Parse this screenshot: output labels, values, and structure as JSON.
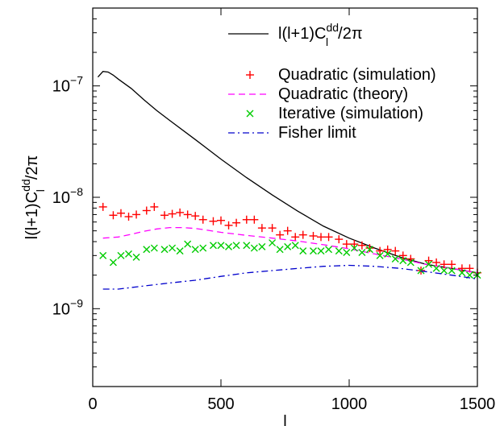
{
  "chart_data": {
    "type": "line",
    "title": "",
    "xlabel": "l",
    "ylabel": {
      "main": "l(l+1)C",
      "sup": "dd",
      "sub": "l",
      "tail": "/2π"
    },
    "x_scale": "linear",
    "y_scale": "log",
    "xlim": [
      0,
      1500
    ],
    "ylim": [
      2e-10,
      5e-07
    ],
    "x_ticks": [
      0,
      500,
      1000,
      1500
    ],
    "x_tick_labels": [
      "0",
      "500",
      "1000",
      "1500"
    ],
    "y_ticks": [
      1e-09,
      1e-08,
      1e-07
    ],
    "y_tick_labels": [
      {
        "base": "10",
        "exp": "−9"
      },
      {
        "base": "10",
        "exp": "−8"
      },
      {
        "base": "10",
        "exp": "−7"
      }
    ],
    "grid": false,
    "legend_position": "top-right",
    "series": [
      {
        "name": {
          "main": "l(l+1)C",
          "sup": "dd",
          "sub": "l",
          "tail": "/2π"
        },
        "style": "solid",
        "color": "#000000",
        "x": [
          20,
          40,
          60,
          80,
          100,
          150,
          200,
          250,
          300,
          400,
          500,
          600,
          700,
          800,
          900,
          1000,
          1100,
          1200,
          1300,
          1400,
          1500
        ],
        "y": [
          1.2e-07,
          1.35e-07,
          1.33e-07,
          1.25e-07,
          1.15e-07,
          9.5e-08,
          7.5e-08,
          6e-08,
          4.9e-08,
          3.3e-08,
          2.2e-08,
          1.5e-08,
          1.05e-08,
          7.5e-09,
          5.5e-09,
          4.3e-09,
          3.5e-09,
          2.9e-09,
          2.5e-09,
          2.3e-09,
          2.1e-09
        ]
      },
      {
        "name": "Quadratic (simulation)",
        "style": "plus",
        "color": "#ff0000",
        "x": [
          40,
          80,
          110,
          140,
          170,
          210,
          240,
          280,
          310,
          340,
          370,
          400,
          430,
          470,
          500,
          530,
          560,
          600,
          630,
          660,
          700,
          730,
          760,
          790,
          820,
          860,
          890,
          920,
          960,
          990,
          1020,
          1050,
          1080,
          1120,
          1150,
          1180,
          1210,
          1240,
          1280,
          1310,
          1340,
          1370,
          1400,
          1440,
          1470,
          1500
        ],
        "y": [
          8.2e-09,
          6.9e-09,
          7.2e-09,
          6.7e-09,
          7e-09,
          7.6e-09,
          8.2e-09,
          6.9e-09,
          7.1e-09,
          7.3e-09,
          7e-09,
          6.8e-09,
          6.3e-09,
          6.1e-09,
          6.2e-09,
          5.6e-09,
          5.9e-09,
          6.3e-09,
          6.3e-09,
          5.3e-09,
          5.3e-09,
          4.6e-09,
          5e-09,
          4.4e-09,
          4.6e-09,
          4.5e-09,
          4.4e-09,
          4.4e-09,
          4.2e-09,
          3.8e-09,
          3.8e-09,
          3.7e-09,
          3.5e-09,
          3.3e-09,
          3.4e-09,
          3.3e-09,
          3e-09,
          2.8e-09,
          2.2e-09,
          2.7e-09,
          2.6e-09,
          2.5e-09,
          2.5e-09,
          2.3e-09,
          2.3e-09,
          2.1e-09
        ]
      },
      {
        "name": "Quadratic (theory)",
        "style": "dashed",
        "color": "#ff00ff",
        "x": [
          40,
          100,
          150,
          200,
          250,
          300,
          350,
          400,
          450,
          500,
          600,
          700,
          800,
          900,
          1000,
          1100,
          1200,
          1300,
          1400,
          1500
        ],
        "y": [
          4.3e-09,
          4.4e-09,
          4.65e-09,
          4.95e-09,
          5.2e-09,
          5.35e-09,
          5.35e-09,
          5.25e-09,
          5.05e-09,
          4.85e-09,
          4.55e-09,
          4.3e-09,
          4.05e-09,
          3.75e-09,
          3.45e-09,
          3.1e-09,
          2.8e-09,
          2.5e-09,
          2.3e-09,
          2.1e-09
        ]
      },
      {
        "name": "Iterative (simulation)",
        "style": "cross",
        "color": "#00cc00",
        "x": [
          40,
          80,
          110,
          140,
          170,
          210,
          240,
          280,
          310,
          340,
          370,
          400,
          430,
          470,
          500,
          530,
          560,
          600,
          630,
          660,
          700,
          730,
          760,
          790,
          820,
          860,
          890,
          920,
          960,
          990,
          1020,
          1050,
          1080,
          1120,
          1150,
          1180,
          1210,
          1240,
          1280,
          1310,
          1340,
          1370,
          1400,
          1440,
          1470,
          1500
        ],
        "y": [
          3e-09,
          2.6e-09,
          3e-09,
          3.1e-09,
          2.9e-09,
          3.4e-09,
          3.5e-09,
          3.4e-09,
          3.5e-09,
          3.3e-09,
          3.8e-09,
          3.4e-09,
          3.5e-09,
          3.7e-09,
          3.7e-09,
          3.6e-09,
          3.7e-09,
          3.7e-09,
          3.5e-09,
          3.6e-09,
          3.9e-09,
          3.4e-09,
          3.6e-09,
          3.7e-09,
          3.3e-09,
          3.3e-09,
          3.3e-09,
          3.4e-09,
          3.3e-09,
          3.2e-09,
          3.5e-09,
          3.2e-09,
          3.4e-09,
          3e-09,
          3.1e-09,
          2.8e-09,
          2.7e-09,
          2.6e-09,
          2.2e-09,
          2.5e-09,
          2.3e-09,
          2.2e-09,
          2.2e-09,
          2.1e-09,
          2e-09,
          2e-09
        ]
      },
      {
        "name": "Fisher limit",
        "style": "dashdot",
        "color": "#0000cc",
        "x": [
          40,
          100,
          200,
          300,
          400,
          500,
          600,
          700,
          800,
          900,
          1000,
          1100,
          1200,
          1300,
          1400,
          1500
        ],
        "y": [
          1.5e-09,
          1.5e-09,
          1.6e-09,
          1.7e-09,
          1.8e-09,
          1.95e-09,
          2.1e-09,
          2.2e-09,
          2.3e-09,
          2.4e-09,
          2.45e-09,
          2.4e-09,
          2.3e-09,
          2.15e-09,
          2e-09,
          1.85e-09
        ]
      }
    ]
  }
}
